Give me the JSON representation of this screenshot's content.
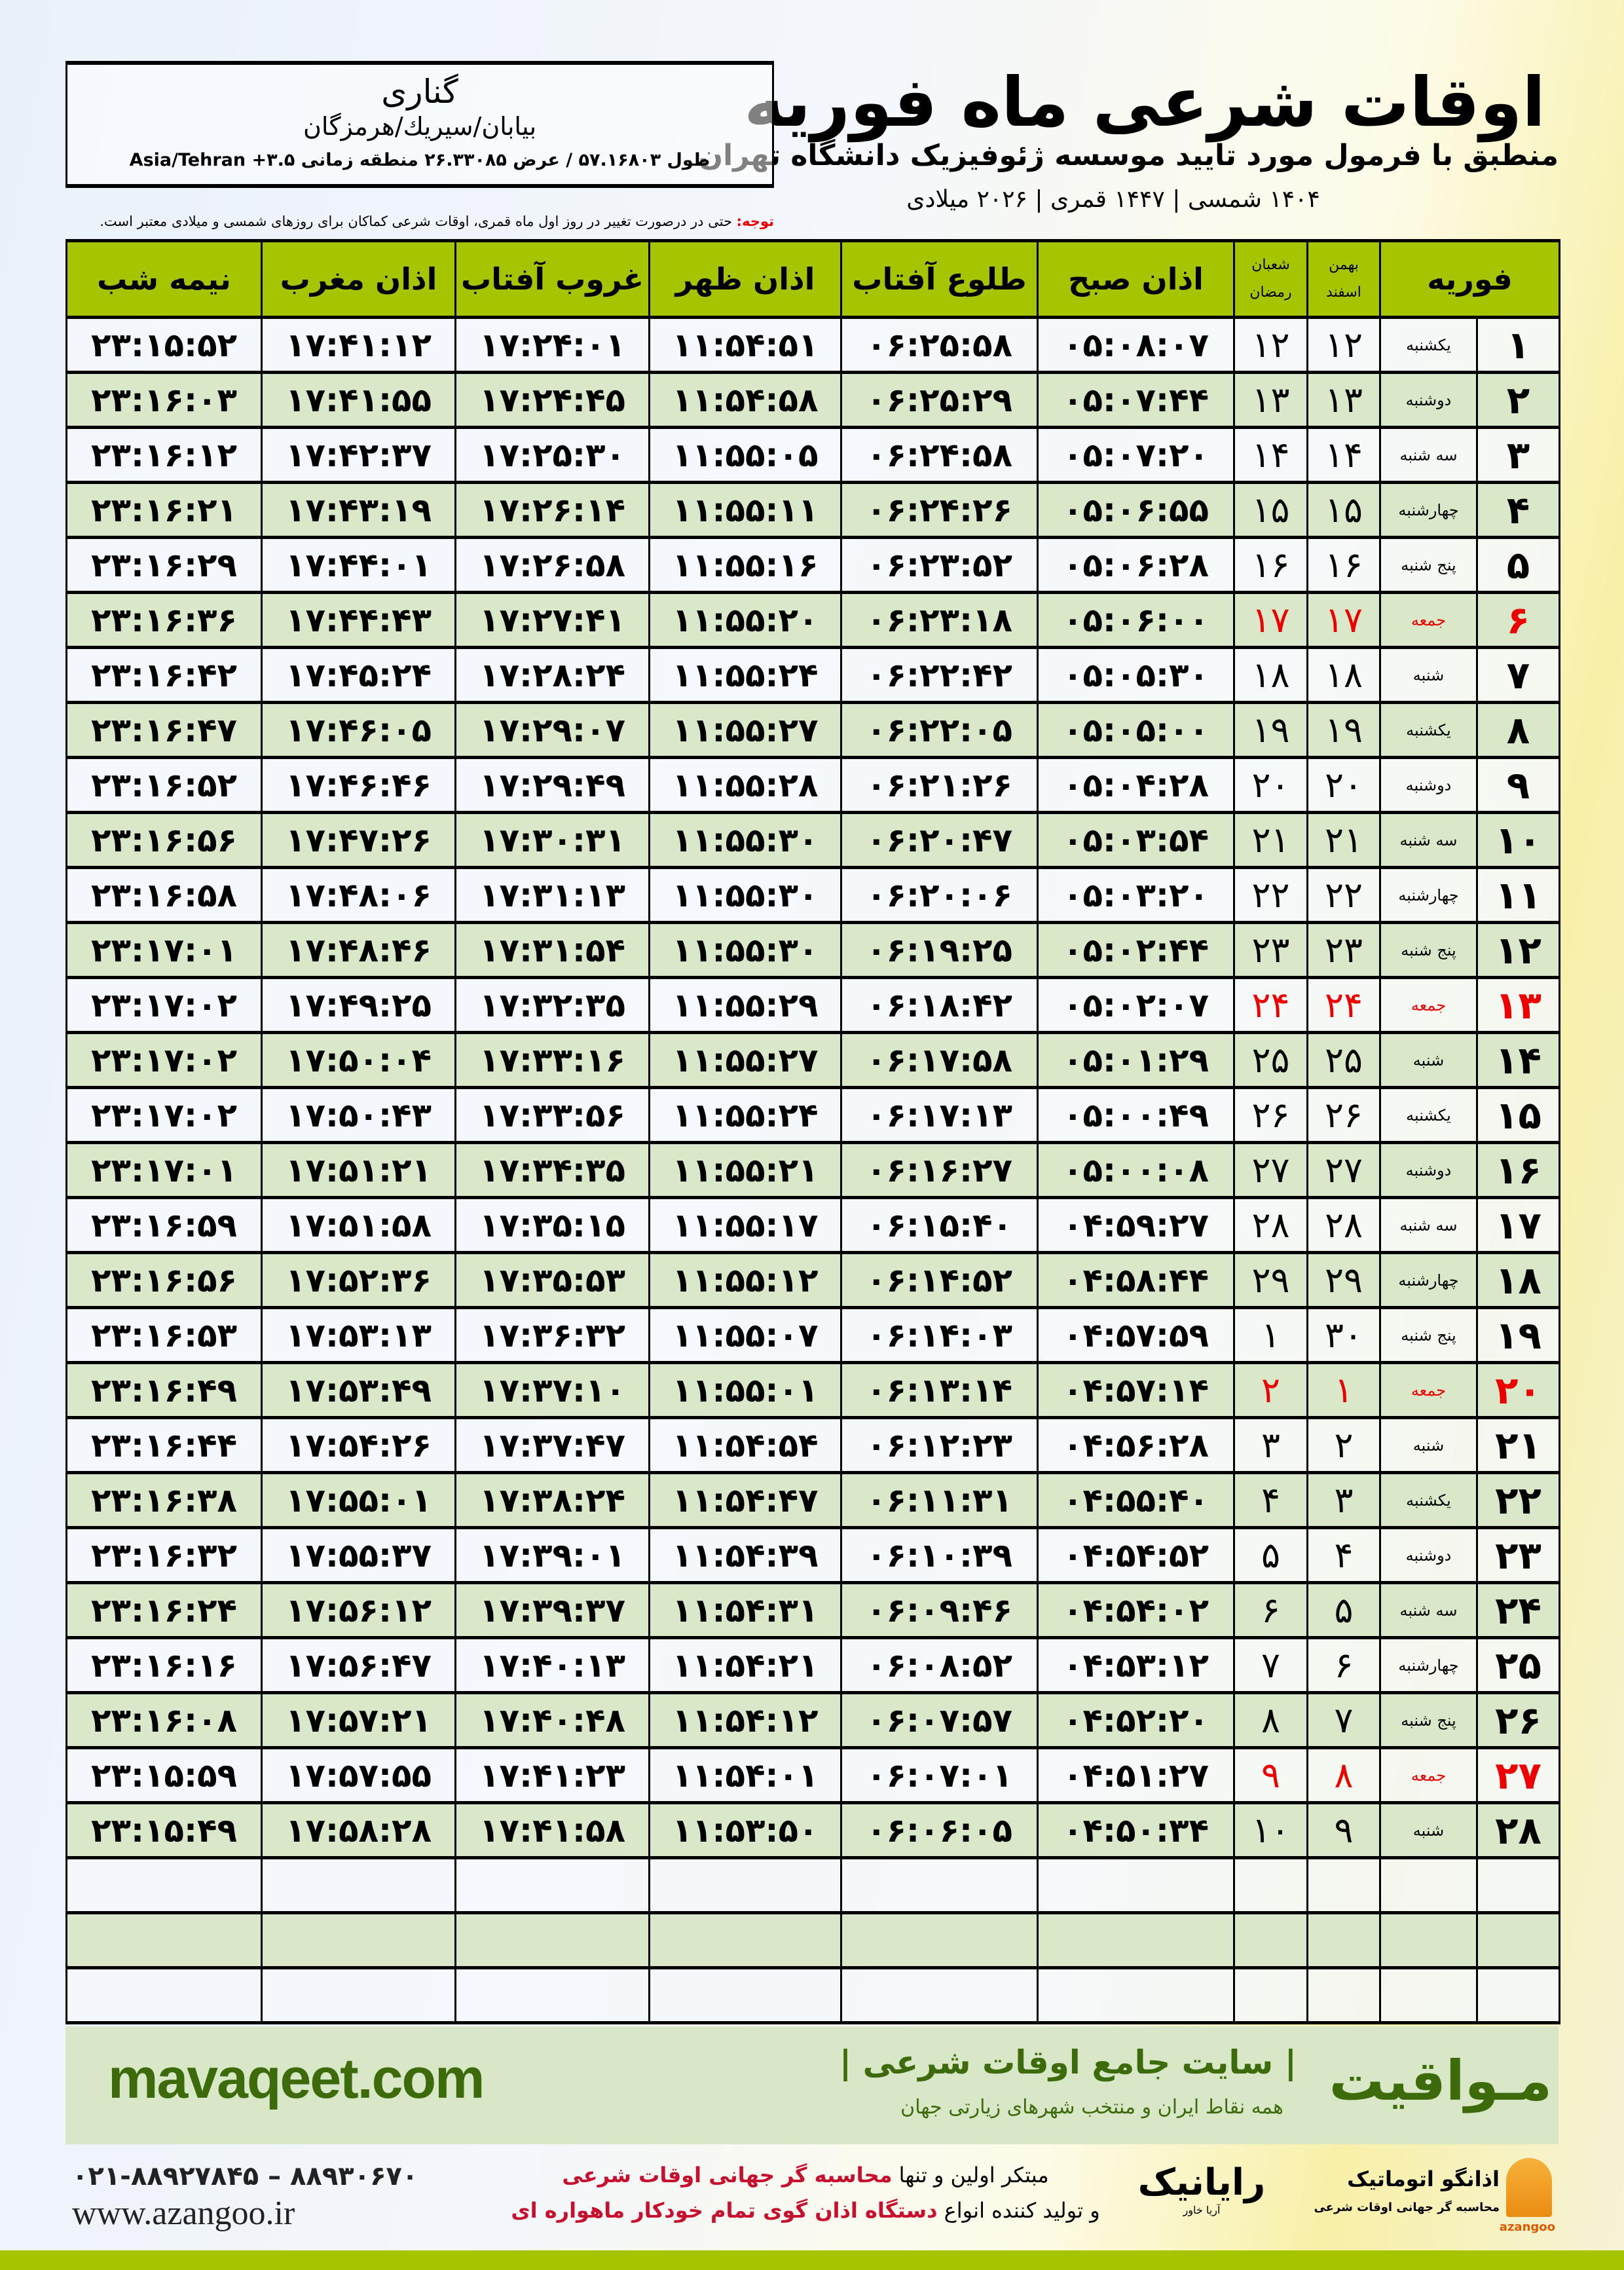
{
  "header": {
    "title": "اوقات شرعی ماه فوریه",
    "subtitle": "منطبق با فرمول مورد تایید موسسه ژئوفیزیک دانشگاه تهران",
    "dates": "۱۴۰۴ شمسی | ۱۴۴۷ قمری | ۲۰۲۶ میلادی"
  },
  "location": {
    "city": "گناری",
    "region": "بیابان/سیریك/هرمزگان",
    "coords": "طول ۵۷.۱۶۸۰۳ / عرض ۲۶.۳۳۰۸۵ منطقه زمانی ۳.۵+ Asia/Tehran"
  },
  "note": {
    "label": "توجه:",
    "text": " حتی در درصورت تغییر در روز اول ماه قمری، اوقات شرعی کماکان برای روزهای شمسی و میلادی معتبر است."
  },
  "columns": {
    "month": "فوریه",
    "solar_top": "بهمن",
    "solar_bottom": "اسفند",
    "lunar_top": "شعبان",
    "lunar_bottom": "رمضان",
    "fajr": "اذان صبح",
    "sunrise": "طلوع آفتاب",
    "dhuhr": "اذان ظهر",
    "sunset": "غروب آفتاب",
    "maghrib": "اذان مغرب",
    "midnight": "نیمه شب"
  },
  "colors": {
    "header_green": "#a6c400",
    "row_green": "#d9e8c8",
    "friday_red": "#e00000",
    "brand_green": "#3d6b0c"
  },
  "rows": [
    [
      "۱",
      "یکشنبه",
      "۱۲",
      "۱۲",
      "۰۵:۰۸:۰۷",
      "۰۶:۲۵:۵۸",
      "۱۱:۵۴:۵۱",
      "۱۷:۲۴:۰۱",
      "۱۷:۴۱:۱۲",
      "۲۳:۱۵:۵۲"
    ],
    [
      "۲",
      "دوشنبه",
      "۱۳",
      "۱۳",
      "۰۵:۰۷:۴۴",
      "۰۶:۲۵:۲۹",
      "۱۱:۵۴:۵۸",
      "۱۷:۲۴:۴۵",
      "۱۷:۴۱:۵۵",
      "۲۳:۱۶:۰۳"
    ],
    [
      "۳",
      "سه شنبه",
      "۱۴",
      "۱۴",
      "۰۵:۰۷:۲۰",
      "۰۶:۲۴:۵۸",
      "۱۱:۵۵:۰۵",
      "۱۷:۲۵:۳۰",
      "۱۷:۴۲:۳۷",
      "۲۳:۱۶:۱۲"
    ],
    [
      "۴",
      "چهارشنبه",
      "۱۵",
      "۱۵",
      "۰۵:۰۶:۵۵",
      "۰۶:۲۴:۲۶",
      "۱۱:۵۵:۱۱",
      "۱۷:۲۶:۱۴",
      "۱۷:۴۳:۱۹",
      "۲۳:۱۶:۲۱"
    ],
    [
      "۵",
      "پنج شنبه",
      "۱۶",
      "۱۶",
      "۰۵:۰۶:۲۸",
      "۰۶:۲۳:۵۲",
      "۱۱:۵۵:۱۶",
      "۱۷:۲۶:۵۸",
      "۱۷:۴۴:۰۱",
      "۲۳:۱۶:۲۹"
    ],
    [
      "۶",
      "جمعه",
      "۱۷",
      "۱۷",
      "۰۵:۰۶:۰۰",
      "۰۶:۲۳:۱۸",
      "۱۱:۵۵:۲۰",
      "۱۷:۲۷:۴۱",
      "۱۷:۴۴:۴۳",
      "۲۳:۱۶:۳۶"
    ],
    [
      "۷",
      "شنبه",
      "۱۸",
      "۱۸",
      "۰۵:۰۵:۳۰",
      "۰۶:۲۲:۴۲",
      "۱۱:۵۵:۲۴",
      "۱۷:۲۸:۲۴",
      "۱۷:۴۵:۲۴",
      "۲۳:۱۶:۴۲"
    ],
    [
      "۸",
      "یکشنبه",
      "۱۹",
      "۱۹",
      "۰۵:۰۵:۰۰",
      "۰۶:۲۲:۰۵",
      "۱۱:۵۵:۲۷",
      "۱۷:۲۹:۰۷",
      "۱۷:۴۶:۰۵",
      "۲۳:۱۶:۴۷"
    ],
    [
      "۹",
      "دوشنبه",
      "۲۰",
      "۲۰",
      "۰۵:۰۴:۲۸",
      "۰۶:۲۱:۲۶",
      "۱۱:۵۵:۲۸",
      "۱۷:۲۹:۴۹",
      "۱۷:۴۶:۴۶",
      "۲۳:۱۶:۵۲"
    ],
    [
      "۱۰",
      "سه شنبه",
      "۲۱",
      "۲۱",
      "۰۵:۰۳:۵۴",
      "۰۶:۲۰:۴۷",
      "۱۱:۵۵:۳۰",
      "۱۷:۳۰:۳۱",
      "۱۷:۴۷:۲۶",
      "۲۳:۱۶:۵۶"
    ],
    [
      "۱۱",
      "چهارشنبه",
      "۲۲",
      "۲۲",
      "۰۵:۰۳:۲۰",
      "۰۶:۲۰:۰۶",
      "۱۱:۵۵:۳۰",
      "۱۷:۳۱:۱۳",
      "۱۷:۴۸:۰۶",
      "۲۳:۱۶:۵۸"
    ],
    [
      "۱۲",
      "پنج شنبه",
      "۲۳",
      "۲۳",
      "۰۵:۰۲:۴۴",
      "۰۶:۱۹:۲۵",
      "۱۱:۵۵:۳۰",
      "۱۷:۳۱:۵۴",
      "۱۷:۴۸:۴۶",
      "۲۳:۱۷:۰۱"
    ],
    [
      "۱۳",
      "جمعه",
      "۲۴",
      "۲۴",
      "۰۵:۰۲:۰۷",
      "۰۶:۱۸:۴۲",
      "۱۱:۵۵:۲۹",
      "۱۷:۳۲:۳۵",
      "۱۷:۴۹:۲۵",
      "۲۳:۱۷:۰۲"
    ],
    [
      "۱۴",
      "شنبه",
      "۲۵",
      "۲۵",
      "۰۵:۰۱:۲۹",
      "۰۶:۱۷:۵۸",
      "۱۱:۵۵:۲۷",
      "۱۷:۳۳:۱۶",
      "۱۷:۵۰:۰۴",
      "۲۳:۱۷:۰۲"
    ],
    [
      "۱۵",
      "یکشنبه",
      "۲۶",
      "۲۶",
      "۰۵:۰۰:۴۹",
      "۰۶:۱۷:۱۳",
      "۱۱:۵۵:۲۴",
      "۱۷:۳۳:۵۶",
      "۱۷:۵۰:۴۳",
      "۲۳:۱۷:۰۲"
    ],
    [
      "۱۶",
      "دوشنبه",
      "۲۷",
      "۲۷",
      "۰۵:۰۰:۰۸",
      "۰۶:۱۶:۲۷",
      "۱۱:۵۵:۲۱",
      "۱۷:۳۴:۳۵",
      "۱۷:۵۱:۲۱",
      "۲۳:۱۷:۰۱"
    ],
    [
      "۱۷",
      "سه شنبه",
      "۲۸",
      "۲۸",
      "۰۴:۵۹:۲۷",
      "۰۶:۱۵:۴۰",
      "۱۱:۵۵:۱۷",
      "۱۷:۳۵:۱۵",
      "۱۷:۵۱:۵۸",
      "۲۳:۱۶:۵۹"
    ],
    [
      "۱۸",
      "چهارشنبه",
      "۲۹",
      "۲۹",
      "۰۴:۵۸:۴۴",
      "۰۶:۱۴:۵۲",
      "۱۱:۵۵:۱۲",
      "۱۷:۳۵:۵۳",
      "۱۷:۵۲:۳۶",
      "۲۳:۱۶:۵۶"
    ],
    [
      "۱۹",
      "پنج شنبه",
      "۳۰",
      "۱",
      "۰۴:۵۷:۵۹",
      "۰۶:۱۴:۰۳",
      "۱۱:۵۵:۰۷",
      "۱۷:۳۶:۳۲",
      "۱۷:۵۳:۱۳",
      "۲۳:۱۶:۵۳"
    ],
    [
      "۲۰",
      "جمعه",
      "۱",
      "۲",
      "۰۴:۵۷:۱۴",
      "۰۶:۱۳:۱۴",
      "۱۱:۵۵:۰۱",
      "۱۷:۳۷:۱۰",
      "۱۷:۵۳:۴۹",
      "۲۳:۱۶:۴۹"
    ],
    [
      "۲۱",
      "شنبه",
      "۲",
      "۳",
      "۰۴:۵۶:۲۸",
      "۰۶:۱۲:۲۳",
      "۱۱:۵۴:۵۴",
      "۱۷:۳۷:۴۷",
      "۱۷:۵۴:۲۶",
      "۲۳:۱۶:۴۴"
    ],
    [
      "۲۲",
      "یکشنبه",
      "۳",
      "۴",
      "۰۴:۵۵:۴۰",
      "۰۶:۱۱:۳۱",
      "۱۱:۵۴:۴۷",
      "۱۷:۳۸:۲۴",
      "۱۷:۵۵:۰۱",
      "۲۳:۱۶:۳۸"
    ],
    [
      "۲۳",
      "دوشنبه",
      "۴",
      "۵",
      "۰۴:۵۴:۵۲",
      "۰۶:۱۰:۳۹",
      "۱۱:۵۴:۳۹",
      "۱۷:۳۹:۰۱",
      "۱۷:۵۵:۳۷",
      "۲۳:۱۶:۳۲"
    ],
    [
      "۲۴",
      "سه شنبه",
      "۵",
      "۶",
      "۰۴:۵۴:۰۲",
      "۰۶:۰۹:۴۶",
      "۱۱:۵۴:۳۱",
      "۱۷:۳۹:۳۷",
      "۱۷:۵۶:۱۲",
      "۲۳:۱۶:۲۴"
    ],
    [
      "۲۵",
      "چهارشنبه",
      "۶",
      "۷",
      "۰۴:۵۳:۱۲",
      "۰۶:۰۸:۵۲",
      "۱۱:۵۴:۲۱",
      "۱۷:۴۰:۱۳",
      "۱۷:۵۶:۴۷",
      "۲۳:۱۶:۱۶"
    ],
    [
      "۲۶",
      "پنج شنبه",
      "۷",
      "۸",
      "۰۴:۵۲:۲۰",
      "۰۶:۰۷:۵۷",
      "۱۱:۵۴:۱۲",
      "۱۷:۴۰:۴۸",
      "۱۷:۵۷:۲۱",
      "۲۳:۱۶:۰۸"
    ],
    [
      "۲۷",
      "جمعه",
      "۸",
      "۹",
      "۰۴:۵۱:۲۷",
      "۰۶:۰۷:۰۱",
      "۱۱:۵۴:۰۱",
      "۱۷:۴۱:۲۳",
      "۱۷:۵۷:۵۵",
      "۲۳:۱۵:۵۹"
    ],
    [
      "۲۸",
      "شنبه",
      "۹",
      "۱۰",
      "۰۴:۵۰:۳۴",
      "۰۶:۰۶:۰۵",
      "۱۱:۵۳:۵۰",
      "۱۷:۴۱:۵۸",
      "۱۷:۵۸:۲۸",
      "۲۳:۱۵:۴۹"
    ]
  ],
  "footer": {
    "site": "mavaqeet.com",
    "brand": "مـواقیت",
    "tagline": "| سایت جامع اوقات شرعی |",
    "tagline2": "همه نقاط ایران و منتخب شهرهای زیارتی جهان",
    "phone": "۰۲۱-۸۸۹۲۷۸۴۵ – ۸۸۹۳۰۶۷۰",
    "web": "www.azangoo.ir",
    "line1_a": "مبتکر اولین و تنها ",
    "line1_b": "محاسبه گر جهانی اوقات شرعی",
    "line2_a": "و تولید کننده انواع ",
    "line2_b": "دستگاه اذان گوی تمام خودکار ماهواره ای",
    "rayanik": "رایانیک",
    "rayanik_sub": "آریا خاور",
    "azangoo_name": "اذانگو اتوماتیک",
    "azangoo_sub": "محاسبه گر جهانی اوقات شرعی",
    "azangoo_en": "azangoo"
  }
}
